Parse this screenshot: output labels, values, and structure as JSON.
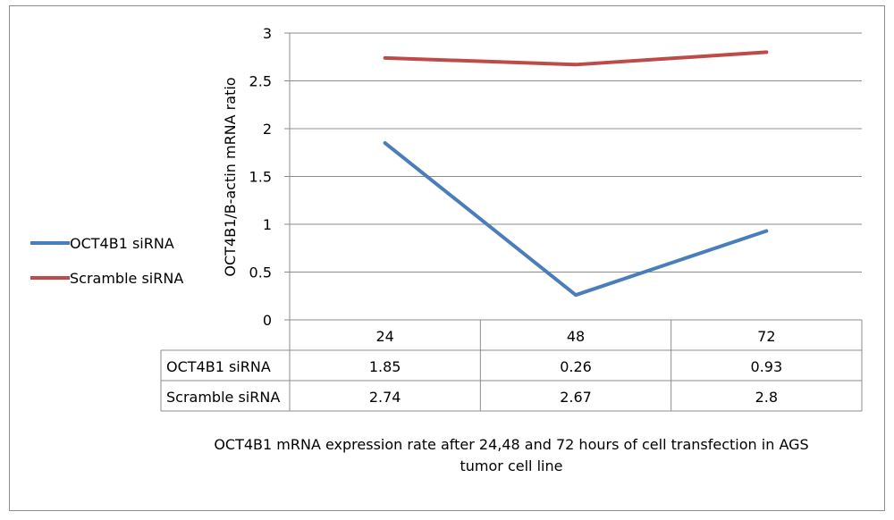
{
  "chart_data": {
    "type": "line",
    "categories": [
      "24",
      "48",
      "72"
    ],
    "series": [
      {
        "name": "OCT4B1 siRNA",
        "values": [
          1.85,
          0.26,
          0.93
        ],
        "color": "#4a7ebb"
      },
      {
        "name": "Scramble siRNA",
        "values": [
          2.74,
          2.67,
          2.8
        ],
        "color": "#be4b48"
      }
    ],
    "ylabel": "OCT4B1/B-actin mRNA ratio",
    "xlabel": "",
    "ylim": [
      0,
      3
    ],
    "yticks": [
      "0",
      "0.5",
      "1",
      "1.5",
      "2",
      "2.5",
      "3"
    ],
    "grid": true,
    "legend": "left",
    "data_table": {
      "rows": [
        {
          "label": "OCT4B1 siRNA",
          "cells": [
            "1.85",
            "0.26",
            "0.93"
          ]
        },
        {
          "label": "Scramble siRNA",
          "cells": [
            "2.74",
            "2.67",
            "2.8"
          ]
        }
      ]
    },
    "caption_line1": "OCT4B1 mRNA expression rate after 24,48 and 72 hours of cell transfection in AGS",
    "caption_line2": "tumor cell line"
  }
}
